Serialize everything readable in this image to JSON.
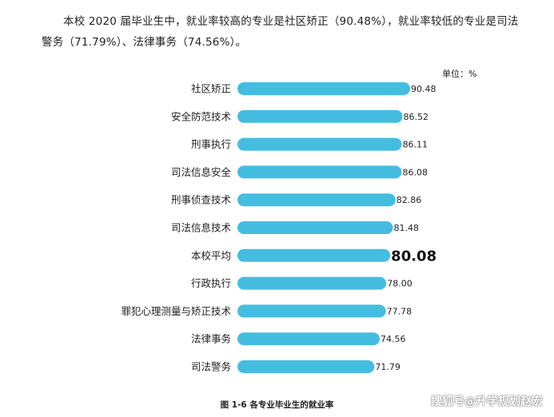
{
  "intro_text": "本校 2020 届毕业生中，就业率较高的专业是社区矫正（90.48%），就业率较低的专业是司法警务（71.79%）、法律事务（74.56%）。",
  "caption": "图 1-6 各专业毕业生的就业率",
  "watermark": "搜狐号@升学规划赵宏",
  "colors": {
    "bar": "#44BDE1",
    "text": "#222222"
  },
  "chart_data": {
    "type": "bar",
    "orientation": "horizontal",
    "unit_label": "单位：%",
    "categories": [
      "社区矫正",
      "安全防范技术",
      "刑事执行",
      "司法信息安全",
      "刑事侦查技术",
      "司法信息技术",
      "本校平均",
      "行政执行",
      "罪犯心理测量与矫正技术",
      "法律事务",
      "司法警务"
    ],
    "values": [
      90.48,
      86.52,
      86.11,
      86.08,
      82.86,
      81.48,
      80.08,
      78.0,
      77.78,
      74.56,
      71.79
    ],
    "value_labels": [
      "90.48",
      "86.52",
      "86.11",
      "86.08",
      "82.86",
      "81.48",
      "80.08",
      "78.00",
      "77.78",
      "74.56",
      "71.79"
    ],
    "highlight_category": "本校平均",
    "xlim": [
      0,
      90.48
    ],
    "grid": false,
    "legend": "none"
  }
}
